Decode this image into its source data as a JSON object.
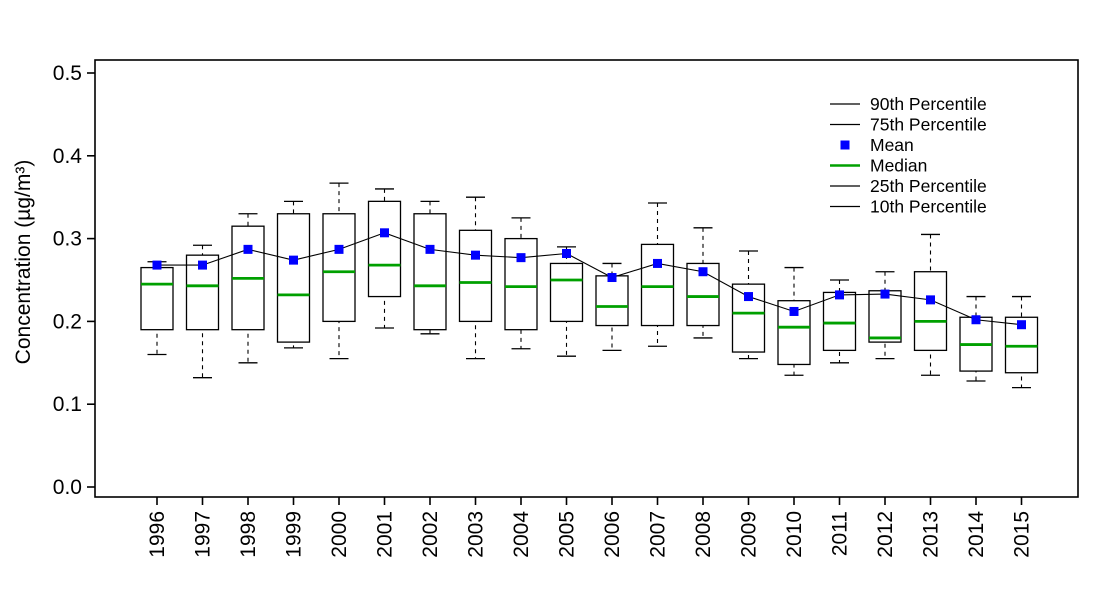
{
  "page": {
    "background": "#ffffff"
  },
  "chart_data": {
    "type": "boxplot",
    "title": "",
    "xlabel": "",
    "ylabel": "Concentration (µg/m³)",
    "ylim": [
      0.0,
      0.5
    ],
    "yticks": [
      0.0,
      0.1,
      0.2,
      0.3,
      0.4,
      0.5
    ],
    "grid": false,
    "legend_position": "top-right-inside",
    "categories": [
      "1996",
      "1997",
      "1998",
      "1999",
      "2000",
      "2001",
      "2002",
      "2003",
      "2004",
      "2005",
      "2006",
      "2007",
      "2008",
      "2009",
      "2010",
      "2011",
      "2012",
      "2013",
      "2014",
      "2015"
    ],
    "series": {
      "p10": [
        0.16,
        0.132,
        0.15,
        0.168,
        0.155,
        0.192,
        0.185,
        0.155,
        0.167,
        0.158,
        0.165,
        0.17,
        0.18,
        0.155,
        0.135,
        0.15,
        0.155,
        0.135,
        0.128,
        0.12
      ],
      "p25": [
        0.19,
        0.19,
        0.19,
        0.175,
        0.2,
        0.23,
        0.19,
        0.2,
        0.19,
        0.2,
        0.195,
        0.195,
        0.195,
        0.163,
        0.148,
        0.165,
        0.175,
        0.165,
        0.14,
        0.138
      ],
      "median": [
        0.245,
        0.243,
        0.252,
        0.232,
        0.26,
        0.268,
        0.243,
        0.247,
        0.242,
        0.25,
        0.218,
        0.242,
        0.23,
        0.21,
        0.193,
        0.198,
        0.18,
        0.2,
        0.172,
        0.17
      ],
      "p75": [
        0.265,
        0.28,
        0.315,
        0.33,
        0.33,
        0.345,
        0.33,
        0.31,
        0.3,
        0.27,
        0.255,
        0.293,
        0.27,
        0.245,
        0.225,
        0.235,
        0.237,
        0.26,
        0.205,
        0.205
      ],
      "p90": [
        0.272,
        0.292,
        0.33,
        0.345,
        0.367,
        0.36,
        0.345,
        0.35,
        0.325,
        0.29,
        0.27,
        0.343,
        0.313,
        0.285,
        0.265,
        0.25,
        0.26,
        0.305,
        0.23,
        0.23
      ],
      "mean": [
        0.268,
        0.268,
        0.287,
        0.274,
        0.287,
        0.307,
        0.287,
        0.28,
        0.277,
        0.282,
        0.253,
        0.27,
        0.26,
        0.23,
        0.212,
        0.232,
        0.233,
        0.226,
        0.202,
        0.196
      ]
    },
    "legend": [
      {
        "label": "90th Percentile",
        "sample": "black-line"
      },
      {
        "label": "75th Percentile",
        "sample": "black-line"
      },
      {
        "label": "Mean",
        "sample": "blue-square"
      },
      {
        "label": "Median",
        "sample": "green-line"
      },
      {
        "label": "25th Percentile",
        "sample": "black-line"
      },
      {
        "label": "10th Percentile",
        "sample": "black-line"
      }
    ],
    "colors": {
      "mean": "#0000ff",
      "median": "#00a000",
      "box_stroke": "#000000",
      "box_fill": "#ffffff",
      "whisker": "#000000",
      "mean_line": "#000000"
    }
  }
}
